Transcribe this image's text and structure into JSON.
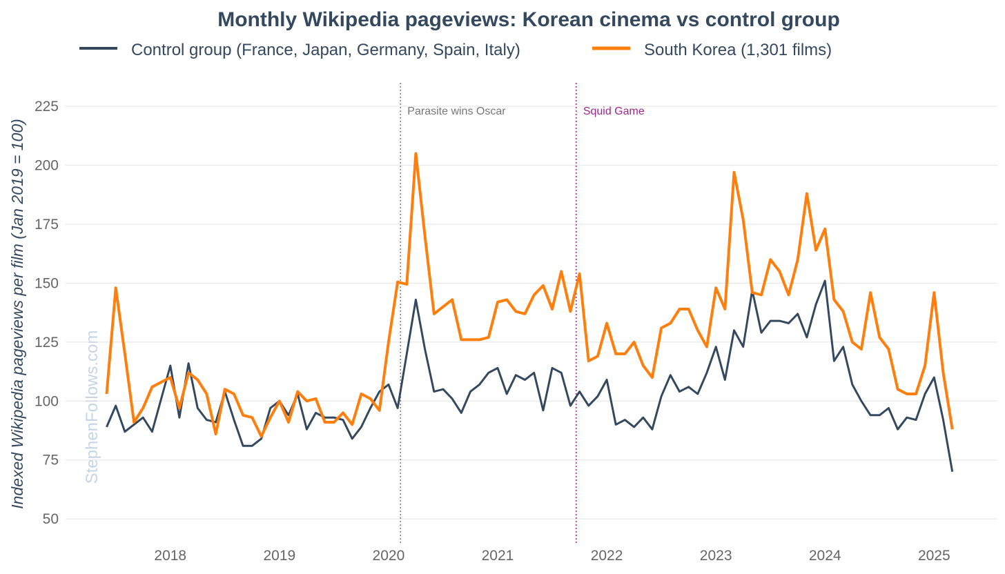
{
  "chart_data": {
    "type": "line",
    "title": "Monthly Wikipedia pageviews: Korean cinema vs control group",
    "xlabel": "",
    "ylabel": "Indexed Wikipedia pageviews per film (Jan 2019 = 100)",
    "start_month": "2017-06",
    "end_month": "2025-03",
    "xlim": [
      2017.04,
      2025.58
    ],
    "ylim": [
      39.5,
      235
    ],
    "x_ticks": [
      2018,
      2019,
      2020,
      2021,
      2022,
      2023,
      2024,
      2025
    ],
    "x_tick_labels": [
      "2018",
      "2019",
      "2020",
      "2021",
      "2022",
      "2023",
      "2024",
      "2025"
    ],
    "y_ticks": [
      50,
      75,
      100,
      125,
      150,
      175,
      200,
      225
    ],
    "y_tick_labels": [
      "50",
      "75",
      "100",
      "125",
      "150",
      "175",
      "200",
      "225"
    ],
    "grid": "horizontal",
    "legend_position": "top",
    "series": [
      {
        "name": "Control group (France, Japan, Germany, Spain, Italy)",
        "color": "#34495e",
        "values": [
          89,
          98,
          87,
          90,
          93,
          87,
          101,
          115,
          93,
          116,
          97,
          92,
          91,
          104,
          92,
          81,
          81,
          84,
          97,
          100,
          94,
          103,
          88,
          95,
          93,
          93,
          92,
          84,
          89,
          97,
          104,
          107,
          97,
          120,
          143,
          122,
          104,
          105,
          101,
          95,
          104,
          107,
          112,
          114,
          103,
          111,
          109,
          112,
          96,
          114,
          112,
          98,
          104,
          98,
          102,
          109,
          90,
          92,
          89,
          93,
          88,
          102,
          111,
          104,
          106,
          103,
          112,
          123,
          109,
          130,
          123,
          147,
          129,
          134,
          134,
          133,
          137,
          127,
          141,
          151,
          117,
          123,
          107,
          100,
          94,
          94,
          97,
          88,
          93,
          92,
          103,
          110,
          92,
          70
        ]
      },
      {
        "name": "South Korea (1,301 films)",
        "color": "#ff7f0e",
        "values": [
          103,
          148,
          120,
          91,
          97,
          106,
          108,
          110,
          97,
          112,
          109,
          103,
          86,
          105,
          103,
          94,
          93,
          85,
          93,
          100,
          91,
          104,
          100,
          101,
          91,
          91,
          95,
          90,
          103,
          101,
          96,
          125,
          150.5,
          149.5,
          205,
          170,
          137,
          140,
          143,
          126,
          126,
          126,
          127,
          142,
          143,
          138,
          137,
          145,
          149,
          139,
          155,
          138,
          154,
          117,
          119,
          133,
          120,
          120,
          125,
          115,
          110,
          131,
          133,
          139,
          139,
          130,
          123,
          148,
          139,
          197,
          177,
          146,
          145,
          160,
          155,
          145,
          160,
          188,
          164,
          173,
          143,
          138,
          125,
          122,
          146,
          127,
          122,
          105,
          103,
          103,
          115,
          146,
          112,
          88
        ]
      }
    ],
    "annotations": [
      {
        "label": "Parasite wins Oscar",
        "x": 2020.11,
        "color": "#777777"
      },
      {
        "label": "Squid Game",
        "x": 2021.72,
        "color": "#a0268f"
      }
    ],
    "watermark": "StephenFollows.com"
  }
}
